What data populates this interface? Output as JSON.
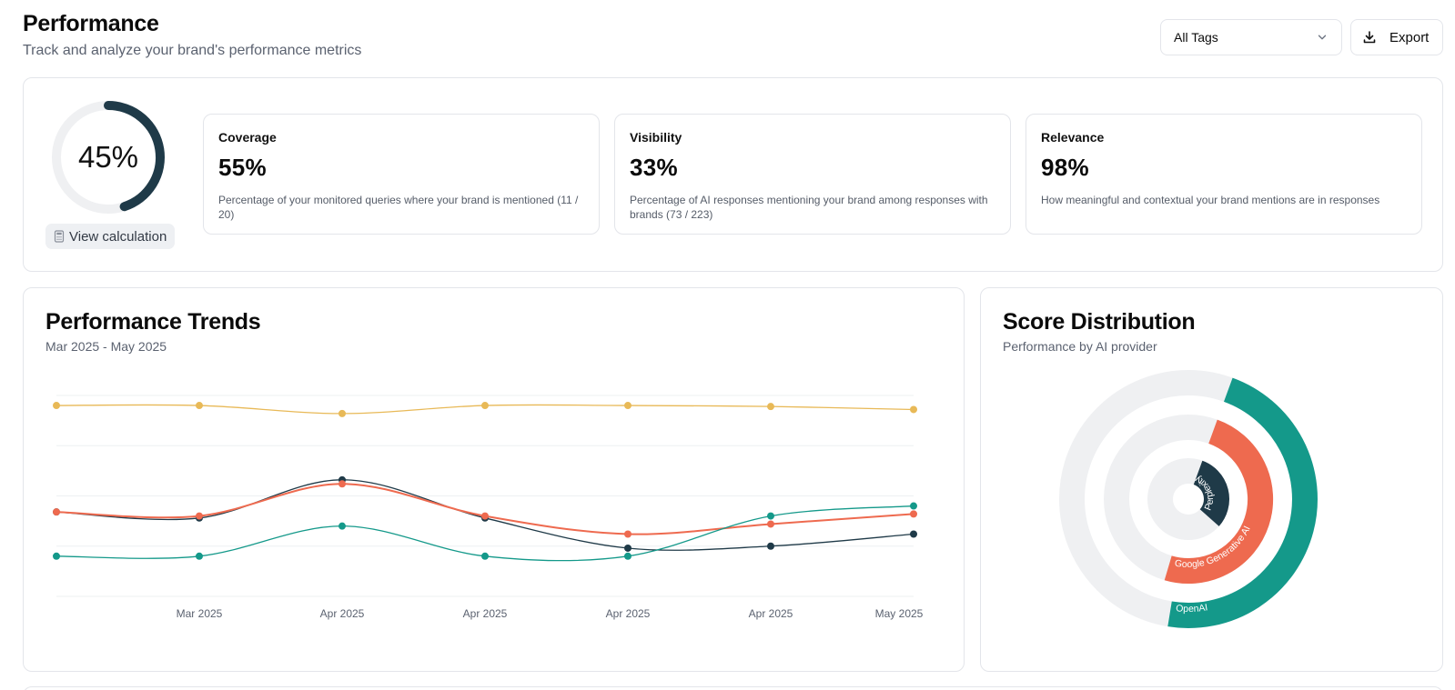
{
  "header": {
    "title": "Performance",
    "subtitle": "Track and analyze your brand's performance metrics"
  },
  "toolbar": {
    "tag_filter": "All Tags",
    "export_label": "Export"
  },
  "summary": {
    "overall_score": "45%",
    "overall_fraction": 0.45,
    "view_calculation": "View calculation",
    "metrics": [
      {
        "title": "Coverage",
        "value": "55%",
        "description": "Percentage of your monitored queries where your brand is mentioned (11 / 20)"
      },
      {
        "title": "Visibility",
        "value": "33%",
        "description": "Percentage of AI responses mentioning your brand among responses with brands (73 / 223)"
      },
      {
        "title": "Relevance",
        "value": "98%",
        "description": "How meaningful and contextual your brand mentions are in responses"
      }
    ]
  },
  "colors": {
    "dark": "#1f3a48",
    "orange": "#ee6a4f",
    "teal": "#14998a",
    "yellow": "#e8b957",
    "track": "#eff0f2"
  },
  "chart_data": [
    {
      "type": "line",
      "title": "Performance Trends",
      "subtitle": "Mar 2025 - May 2025",
      "x": [
        "",
        "Mar 2025",
        "Apr 2025",
        "Apr 2025",
        "Apr 2025",
        "Apr 2025",
        "May 2025"
      ],
      "ylim": [
        0,
        100
      ],
      "grid": true,
      "series": [
        {
          "color": "#e8b957",
          "values": [
            95,
            95,
            91,
            95,
            95,
            94.5,
            93
          ]
        },
        {
          "color": "#1f3a48",
          "values": [
            42,
            39,
            58,
            39,
            24,
            25,
            31
          ]
        },
        {
          "color": "#ee6a4f",
          "values": [
            42,
            40,
            56,
            40,
            31,
            36,
            41
          ]
        },
        {
          "color": "#14998a",
          "values": [
            20,
            20,
            35,
            20,
            20,
            40,
            45
          ]
        }
      ]
    },
    {
      "type": "pie",
      "title": "Score Distribution",
      "subtitle": "Performance by AI provider",
      "series": [
        {
          "name": "OpenAI",
          "value": 0.47,
          "color": "#14998a"
        },
        {
          "name": "Google Generative AI",
          "value": 0.49,
          "color": "#ee6a4f"
        },
        {
          "name": "Perplexity",
          "value": 0.31,
          "color": "#1f3a48"
        }
      ]
    }
  ]
}
